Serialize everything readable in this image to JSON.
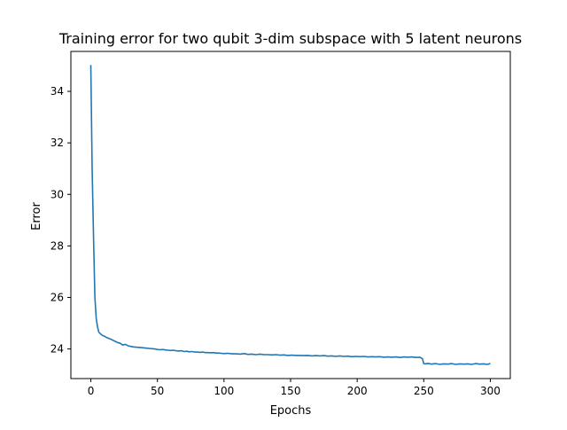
{
  "chart_data": {
    "type": "line",
    "title": "Training error for two qubit 3-dim subspace with 5 latent neurons",
    "xlabel": "Epochs",
    "ylabel": "Error",
    "xlim": [
      -15,
      315
    ],
    "ylim": [
      22.85,
      35.55
    ],
    "xticks": [
      0,
      50,
      100,
      150,
      200,
      250,
      300
    ],
    "yticks": [
      24,
      26,
      28,
      30,
      32,
      34
    ],
    "grid": false,
    "line_color": "#1f77b4",
    "series": [
      {
        "x": [
          0,
          1,
          2,
          3,
          4,
          5,
          6,
          7,
          8,
          9,
          10,
          11,
          12,
          13,
          14,
          15,
          16,
          17,
          18,
          19,
          20,
          22,
          24,
          26,
          28,
          30,
          32,
          34,
          36,
          38,
          40,
          42,
          44,
          46,
          48,
          50,
          52,
          54,
          56,
          58,
          60,
          62,
          64,
          66,
          68,
          70,
          72,
          74,
          76,
          78,
          80,
          82,
          84,
          86,
          88,
          90,
          92,
          94,
          96,
          98,
          100,
          103,
          106,
          109,
          112,
          115,
          118,
          121,
          124,
          127,
          130,
          133,
          136,
          139,
          142,
          145,
          148,
          151,
          154,
          157,
          160,
          163,
          166,
          169,
          172,
          175,
          178,
          181,
          184,
          187,
          190,
          193,
          196,
          199,
          202,
          205,
          208,
          211,
          214,
          217,
          220,
          223,
          226,
          229,
          232,
          235,
          238,
          241,
          244,
          247,
          249,
          250,
          251,
          253,
          256,
          259,
          262,
          265,
          268,
          271,
          274,
          277,
          280,
          283,
          286,
          289,
          292,
          295,
          298,
          300
        ],
        "y": [
          35.02,
          31.0,
          28.3,
          26.0,
          25.2,
          24.85,
          24.65,
          24.6,
          24.55,
          24.52,
          24.5,
          24.47,
          24.44,
          24.42,
          24.4,
          24.38,
          24.35,
          24.33,
          24.3,
          24.28,
          24.25,
          24.22,
          24.15,
          24.18,
          24.12,
          24.1,
          24.08,
          24.07,
          24.06,
          24.05,
          24.04,
          24.03,
          24.02,
          24.01,
          24.0,
          23.98,
          23.97,
          23.98,
          23.96,
          23.95,
          23.94,
          23.95,
          23.93,
          23.92,
          23.93,
          23.9,
          23.91,
          23.89,
          23.9,
          23.88,
          23.88,
          23.87,
          23.88,
          23.86,
          23.86,
          23.85,
          23.86,
          23.84,
          23.84,
          23.83,
          23.82,
          23.83,
          23.81,
          23.81,
          23.8,
          23.82,
          23.79,
          23.8,
          23.78,
          23.8,
          23.78,
          23.78,
          23.77,
          23.78,
          23.76,
          23.77,
          23.75,
          23.76,
          23.75,
          23.75,
          23.74,
          23.75,
          23.73,
          23.74,
          23.73,
          23.74,
          23.72,
          23.73,
          23.71,
          23.73,
          23.71,
          23.72,
          23.7,
          23.71,
          23.7,
          23.71,
          23.69,
          23.7,
          23.69,
          23.7,
          23.68,
          23.69,
          23.68,
          23.69,
          23.67,
          23.69,
          23.68,
          23.69,
          23.67,
          23.68,
          23.62,
          23.43,
          23.42,
          23.44,
          23.41,
          23.43,
          23.4,
          23.42,
          23.41,
          23.43,
          23.4,
          23.42,
          23.41,
          23.42,
          23.4,
          23.43,
          23.41,
          23.42,
          23.4,
          23.44
        ]
      }
    ]
  }
}
